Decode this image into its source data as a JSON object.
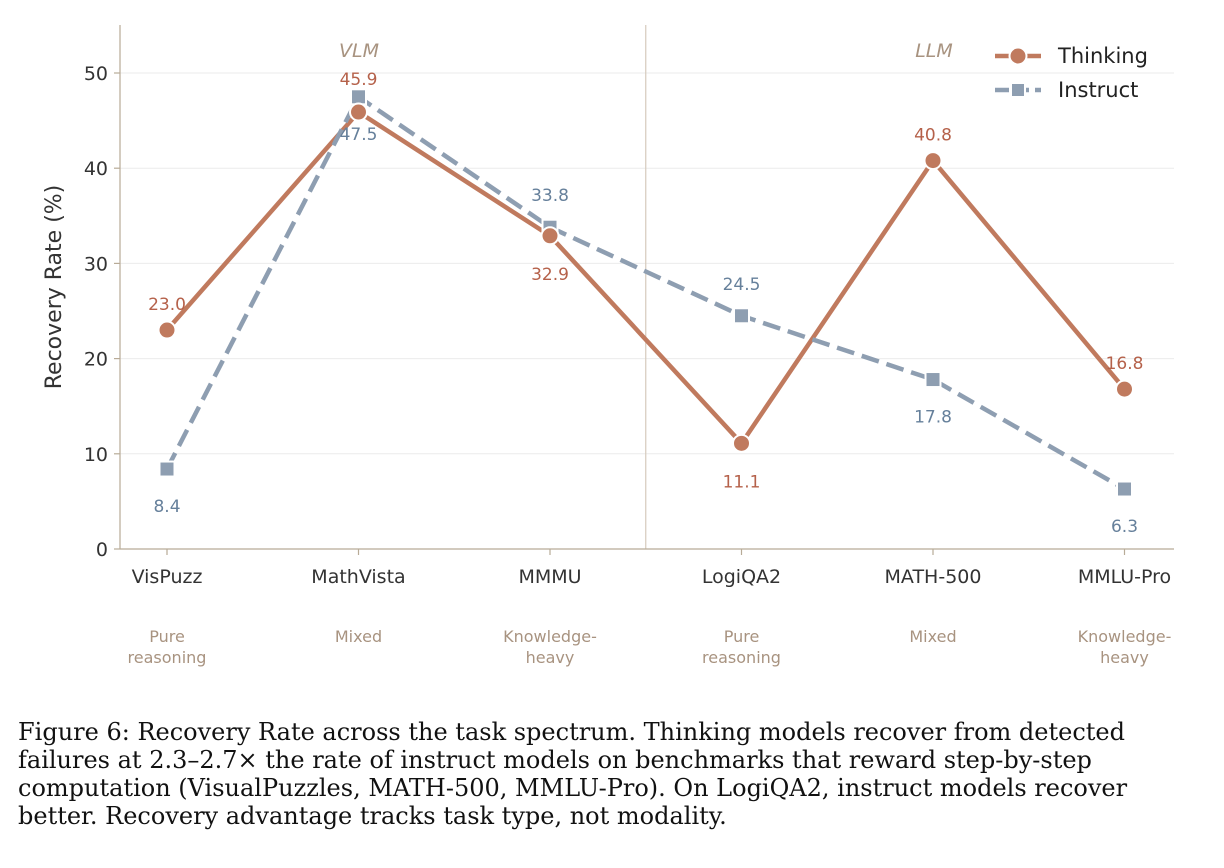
{
  "chart_data": {
    "type": "line",
    "categories": [
      "VisPuzz",
      "MathVista",
      "MMMU",
      "LogiQA2",
      "MATH-500",
      "MMLU-Pro"
    ],
    "category_sublabels": [
      [
        "Pure",
        "reasoning"
      ],
      [
        "Mixed"
      ],
      [
        "Knowledge-",
        "heavy"
      ],
      [
        "Pure",
        "reasoning"
      ],
      [
        "Mixed"
      ],
      [
        "Knowledge-",
        "heavy"
      ]
    ],
    "group_labels": [
      "VLM",
      "LLM"
    ],
    "series": [
      {
        "name": "Thinking",
        "values": [
          23.0,
          45.9,
          32.9,
          11.1,
          40.8,
          16.8
        ],
        "labels": [
          "23.0",
          "45.9",
          "32.9",
          "11.1",
          "40.8",
          "16.8"
        ],
        "color": "#c07a5e",
        "marker": "circle",
        "line": "solid"
      },
      {
        "name": "Instruct",
        "values": [
          8.4,
          47.5,
          33.8,
          24.5,
          17.8,
          6.3
        ],
        "labels": [
          "8.4",
          "47.5",
          "33.8",
          "24.5",
          "17.8",
          "6.3"
        ],
        "color": "#8e9eb1",
        "marker": "square",
        "line": "dashed"
      }
    ],
    "ylabel": "Recovery Rate (%)",
    "xlabel": "",
    "ylim": [
      0,
      55
    ],
    "yticks": [
      "0",
      "10",
      "20",
      "30",
      "40",
      "50"
    ],
    "grid": true,
    "legend_position": "top-right",
    "label_colors": {
      "Thinking": "#b5614a",
      "Instruct": "#66809b"
    }
  },
  "caption": "Figure 6: Recovery Rate across the task spectrum. Thinking models recover from detected failures at 2.3–2.7× the rate of instruct models on benchmarks that reward step-by-step computation (VisualPuzzles, MATH-500, MMLU-Pro). On LogiQA2, instruct models recover better. Recovery advantage tracks task type, not modality."
}
